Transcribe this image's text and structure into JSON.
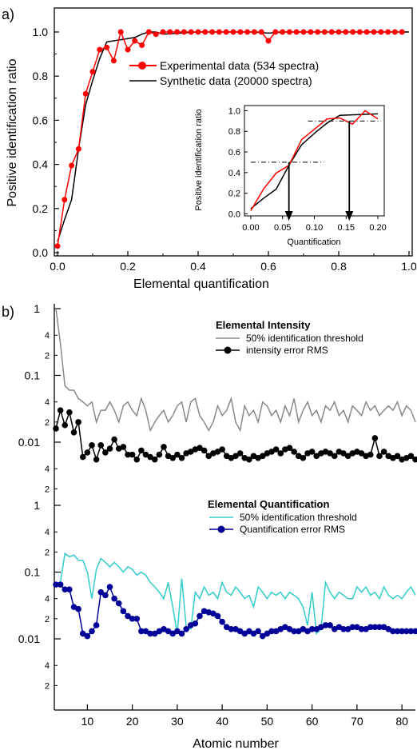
{
  "chart_data": [
    {
      "type": "line",
      "panel_label": "a)",
      "xlabel": "Elemental quantification",
      "ylabel": "Positive identification ratio",
      "xlim": [
        0,
        1.0
      ],
      "ylim": [
        0,
        1.05
      ],
      "xticks": [
        "0.0",
        "0.2",
        "0.4",
        "0.6",
        "0.8",
        "1.0"
      ],
      "yticks": [
        "0.0",
        "0.2",
        "0.4",
        "0.6",
        "0.8",
        "1.0"
      ],
      "legend_position": "center-right",
      "series": [
        {
          "name": "Experimental data (534 spectra)",
          "color": "#ff0000",
          "marker": "circle",
          "x": [
            0.0,
            0.02,
            0.04,
            0.06,
            0.08,
            0.1,
            0.12,
            0.14,
            0.16,
            0.18,
            0.2,
            0.22,
            0.24,
            0.26,
            0.28,
            0.3,
            0.32,
            0.34,
            0.36,
            0.38,
            0.4,
            0.42,
            0.44,
            0.46,
            0.48,
            0.5,
            0.52,
            0.54,
            0.56,
            0.58,
            0.6,
            0.62,
            0.64,
            0.66,
            0.68,
            0.7,
            0.72,
            0.74,
            0.76,
            0.78,
            0.8,
            0.82,
            0.84,
            0.86,
            0.88,
            0.9,
            0.92,
            0.94,
            0.96,
            0.98
          ],
          "y": [
            0.03,
            0.24,
            0.395,
            0.47,
            0.72,
            0.82,
            0.92,
            0.93,
            0.87,
            1.0,
            0.92,
            0.96,
            0.94,
            1.0,
            0.99,
            1.0,
            1.0,
            1.0,
            1.0,
            1.0,
            1.0,
            1.0,
            1.0,
            1.0,
            1.0,
            1.0,
            1.0,
            1.0,
            1.0,
            1.0,
            0.96,
            1.0,
            1.0,
            1.0,
            1.0,
            1.0,
            1.0,
            1.0,
            1.0,
            1.0,
            1.0,
            1.0,
            1.0,
            1.0,
            1.0,
            1.0,
            1.0,
            1.0,
            1.0,
            1.0
          ]
        },
        {
          "name": "Synthetic data (20000 spectra)",
          "color": "#000000",
          "x": [
            0.0,
            0.02,
            0.04,
            0.06,
            0.08,
            0.1,
            0.12,
            0.14,
            0.16,
            0.18,
            0.2,
            0.22,
            0.24,
            0.26,
            0.28,
            0.3,
            0.35,
            0.4,
            0.45,
            0.5,
            0.55,
            0.6,
            0.65,
            0.7,
            0.75,
            0.8,
            0.85,
            0.9,
            0.95,
            1.0
          ],
          "y": [
            0.05,
            0.15,
            0.24,
            0.47,
            0.67,
            0.78,
            0.88,
            0.955,
            0.96,
            0.965,
            0.97,
            0.975,
            0.99,
            1.0,
            1.0,
            0.99,
            0.995,
            1.0,
            1.0,
            1.0,
            1.0,
            0.995,
            1.0,
            1.0,
            1.0,
            1.0,
            1.0,
            1.0,
            1.0,
            1.0
          ]
        }
      ],
      "inset": {
        "xlabel": "Quantification",
        "ylabel": "Positive identification ratio",
        "xlim": [
          -0.01,
          0.21
        ],
        "ylim": [
          -0.02,
          1.05
        ],
        "xticks": [
          "0.00",
          "0.05",
          "0.10",
          "0.15",
          "0.20"
        ],
        "yticks": [
          "0.0",
          "0.2",
          "0.4",
          "0.6",
          "0.8",
          "1.0"
        ],
        "red_y": [
          0.03,
          0.24,
          0.395,
          0.47,
          0.72,
          0.82,
          0.92,
          0.93,
          0.87,
          1.0,
          0.92
        ],
        "black_y": [
          0.05,
          0.15,
          0.24,
          0.47,
          0.67,
          0.78,
          0.88,
          0.955,
          0.96,
          0.965,
          0.97
        ],
        "inset_x": [
          0.0,
          0.02,
          0.04,
          0.06,
          0.08,
          0.1,
          0.12,
          0.14,
          0.16,
          0.18,
          0.2
        ],
        "threshold_levels": [
          0.5,
          0.9
        ],
        "threshold_x": [
          0.06,
          0.155
        ]
      }
    },
    {
      "type": "line",
      "panel_label": "b)",
      "scale": "log",
      "ylim": [
        0.002,
        1
      ],
      "xlim": [
        3,
        83
      ],
      "title": "Elemental Intensity",
      "series": [
        {
          "name": "50% identification threshold",
          "color": "#888888",
          "values": [
            1.0,
            0.3,
            0.07,
            0.06,
            0.06,
            0.045,
            0.04,
            0.035,
            0.04,
            0.02,
            0.03,
            0.03,
            0.04,
            0.03,
            0.02,
            0.035,
            0.04,
            0.03,
            0.025,
            0.045,
            0.03,
            0.015,
            0.02,
            0.025,
            0.03,
            0.02,
            0.025,
            0.035,
            0.04,
            0.02,
            0.04,
            0.045,
            0.025,
            0.02,
            0.015,
            0.02,
            0.035,
            0.025,
            0.03,
            0.045,
            0.02,
            0.015,
            0.035,
            0.025,
            0.03,
            0.02,
            0.04,
            0.035,
            0.025,
            0.03,
            0.02,
            0.035,
            0.025,
            0.045,
            0.02,
            0.03,
            0.04,
            0.025,
            0.03,
            0.02,
            0.035,
            0.03,
            0.04,
            0.025,
            0.03,
            0.02,
            0.035,
            0.03,
            0.025,
            0.04,
            0.03,
            0.035,
            0.025,
            0.03,
            0.035,
            0.03,
            0.04,
            0.025,
            0.035,
            0.03,
            0.02
          ],
          "x_start": 3
        },
        {
          "name": "intensity error RMS",
          "color": "#000000",
          "marker": "circle",
          "values": [
            0.016,
            0.03,
            0.018,
            0.028,
            0.014,
            0.02,
            0.006,
            0.007,
            0.009,
            0.0055,
            0.009,
            0.007,
            0.008,
            0.011,
            0.008,
            0.0085,
            0.0065,
            0.0065,
            0.0055,
            0.0075,
            0.0065,
            0.006,
            0.0055,
            0.0065,
            0.0085,
            0.0062,
            0.0058,
            0.0065,
            0.0058,
            0.0068,
            0.0072,
            0.0078,
            0.0082,
            0.0075,
            0.0062,
            0.0068,
            0.0072,
            0.0078,
            0.0062,
            0.0058,
            0.0062,
            0.0068,
            0.0058,
            0.0055,
            0.0062,
            0.0058,
            0.0062,
            0.0068,
            0.0072,
            0.0078,
            0.0068,
            0.0078,
            0.0082,
            0.0072,
            0.0062,
            0.0058,
            0.0068,
            0.0072,
            0.0062,
            0.0068,
            0.0072,
            0.0068,
            0.0062,
            0.0072,
            0.0068,
            0.0062,
            0.0068,
            0.0072,
            0.0068,
            0.0062,
            0.0065,
            0.0115,
            0.0062,
            0.0072,
            0.0062,
            0.0058,
            0.0062,
            0.0055,
            0.0058,
            0.0062,
            0.0055
          ],
          "x_start": 3
        }
      ]
    },
    {
      "type": "line",
      "scale": "log",
      "ylim": [
        0.002,
        1
      ],
      "xlim": [
        3,
        83
      ],
      "title": "Elemental Quantification",
      "xlabel": "Atomic number",
      "xticks": [
        "10",
        "20",
        "30",
        "40",
        "50",
        "60",
        "70",
        "80"
      ],
      "series": [
        {
          "name": "50% identification threshold",
          "color": "#33cccc",
          "values": [
            0.06,
            0.07,
            0.19,
            0.17,
            0.18,
            0.15,
            0.15,
            0.1,
            0.04,
            0.11,
            0.16,
            0.14,
            0.12,
            0.14,
            0.12,
            0.1,
            0.12,
            0.11,
            0.09,
            0.1,
            0.09,
            0.07,
            0.06,
            0.05,
            0.04,
            0.07,
            0.03,
            0.012,
            0.08,
            0.015,
            0.014,
            0.05,
            0.04,
            0.06,
            0.045,
            0.05,
            0.04,
            0.07,
            0.05,
            0.045,
            0.06,
            0.05,
            0.04,
            0.045,
            0.03,
            0.06,
            0.05,
            0.04,
            0.05,
            0.045,
            0.05,
            0.04,
            0.05,
            0.045,
            0.04,
            0.03,
            0.016,
            0.05,
            0.012,
            0.014,
            0.07,
            0.05,
            0.04,
            0.05,
            0.045,
            0.04,
            0.04,
            0.06,
            0.05,
            0.06,
            0.045,
            0.05,
            0.04,
            0.06,
            0.045,
            0.04,
            0.045,
            0.04,
            0.05,
            0.06,
            0.045
          ],
          "x_start": 3
        },
        {
          "name": "Quantification error RMS",
          "color": "#000099",
          "marker": "circle",
          "values": [
            0.065,
            0.065,
            0.055,
            0.055,
            0.03,
            0.028,
            0.012,
            0.011,
            0.013,
            0.016,
            0.05,
            0.045,
            0.06,
            0.04,
            0.034,
            0.026,
            0.022,
            0.02,
            0.02,
            0.013,
            0.013,
            0.012,
            0.012,
            0.013,
            0.014,
            0.013,
            0.012,
            0.013,
            0.012,
            0.014,
            0.016,
            0.017,
            0.022,
            0.026,
            0.025,
            0.024,
            0.022,
            0.018,
            0.015,
            0.014,
            0.014,
            0.013,
            0.012,
            0.013,
            0.012,
            0.013,
            0.011,
            0.012,
            0.013,
            0.013,
            0.014,
            0.015,
            0.014,
            0.013,
            0.013,
            0.014,
            0.013,
            0.014,
            0.014,
            0.015,
            0.016,
            0.016,
            0.014,
            0.015,
            0.014,
            0.014,
            0.015,
            0.015,
            0.014,
            0.014,
            0.015,
            0.015,
            0.015,
            0.015,
            0.014,
            0.013,
            0.013,
            0.013,
            0.013,
            0.013,
            0.013
          ],
          "x_start": 3
        }
      ]
    }
  ],
  "log_ticks": {
    "major": [
      "1",
      "0.1",
      "0.01"
    ],
    "minor": [
      "4",
      "2"
    ]
  }
}
